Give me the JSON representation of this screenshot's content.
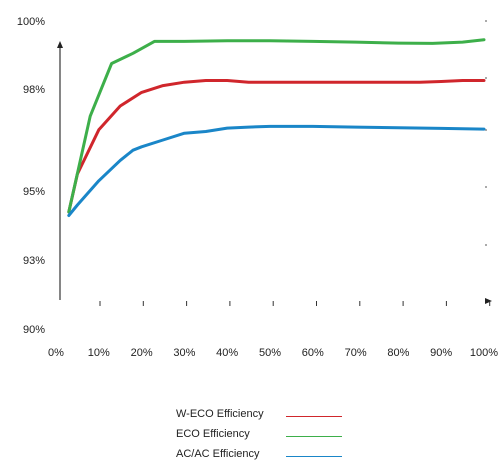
{
  "chart_data": {
    "type": "line",
    "title": "",
    "xlabel": "",
    "ylabel": "",
    "x_tick_labels": [
      "0%",
      "10%",
      "20%",
      "30%",
      "40%",
      "50%",
      "60%",
      "70%",
      "80%",
      "90%",
      "100%"
    ],
    "y_tick_labels": [
      "100%",
      "98%",
      "95%",
      "93%",
      "90%"
    ],
    "grid": false,
    "legend_position": "bottom-center",
    "series": [
      {
        "name": "W-ECO Efficiency",
        "color": "#d0262c",
        "points": [
          [
            3,
            94.4
          ],
          [
            5,
            95.5
          ],
          [
            10,
            96.8
          ],
          [
            15,
            97.5
          ],
          [
            20,
            97.9
          ],
          [
            25,
            98.1
          ],
          [
            30,
            98.2
          ],
          [
            35,
            98.25
          ],
          [
            40,
            98.25
          ],
          [
            45,
            98.2
          ],
          [
            50,
            98.2
          ],
          [
            55,
            98.2
          ],
          [
            60,
            98.2
          ],
          [
            65,
            98.2
          ],
          [
            70,
            98.2
          ],
          [
            75,
            98.2
          ],
          [
            80,
            98.2
          ],
          [
            85,
            98.2
          ],
          [
            90,
            98.22
          ],
          [
            95,
            98.25
          ],
          [
            100,
            98.25
          ]
        ]
      },
      {
        "name": "ECO Efficiency",
        "color": "#3daf4a",
        "points": [
          [
            3,
            94.4
          ],
          [
            8,
            97.2
          ],
          [
            13,
            98.75
          ],
          [
            18,
            99.05
          ],
          [
            23,
            99.4
          ],
          [
            30,
            99.4
          ],
          [
            40,
            99.42
          ],
          [
            50,
            99.42
          ],
          [
            60,
            99.4
          ],
          [
            70,
            99.38
          ],
          [
            80,
            99.35
          ],
          [
            88,
            99.34
          ],
          [
            95,
            99.38
          ],
          [
            100,
            99.45
          ]
        ]
      },
      {
        "name": "AC/AC Efficiency",
        "color": "#1a86c8",
        "points": [
          [
            3,
            94.3
          ],
          [
            5,
            94.6
          ],
          [
            10,
            95.3
          ],
          [
            15,
            95.9
          ],
          [
            18,
            96.2
          ],
          [
            20,
            96.3
          ],
          [
            25,
            96.5
          ],
          [
            30,
            96.7
          ],
          [
            35,
            96.75
          ],
          [
            40,
            96.85
          ],
          [
            45,
            96.88
          ],
          [
            50,
            96.9
          ],
          [
            55,
            96.9
          ],
          [
            60,
            96.9
          ],
          [
            70,
            96.88
          ],
          [
            80,
            96.86
          ],
          [
            90,
            96.84
          ],
          [
            100,
            96.82
          ]
        ]
      }
    ]
  }
}
